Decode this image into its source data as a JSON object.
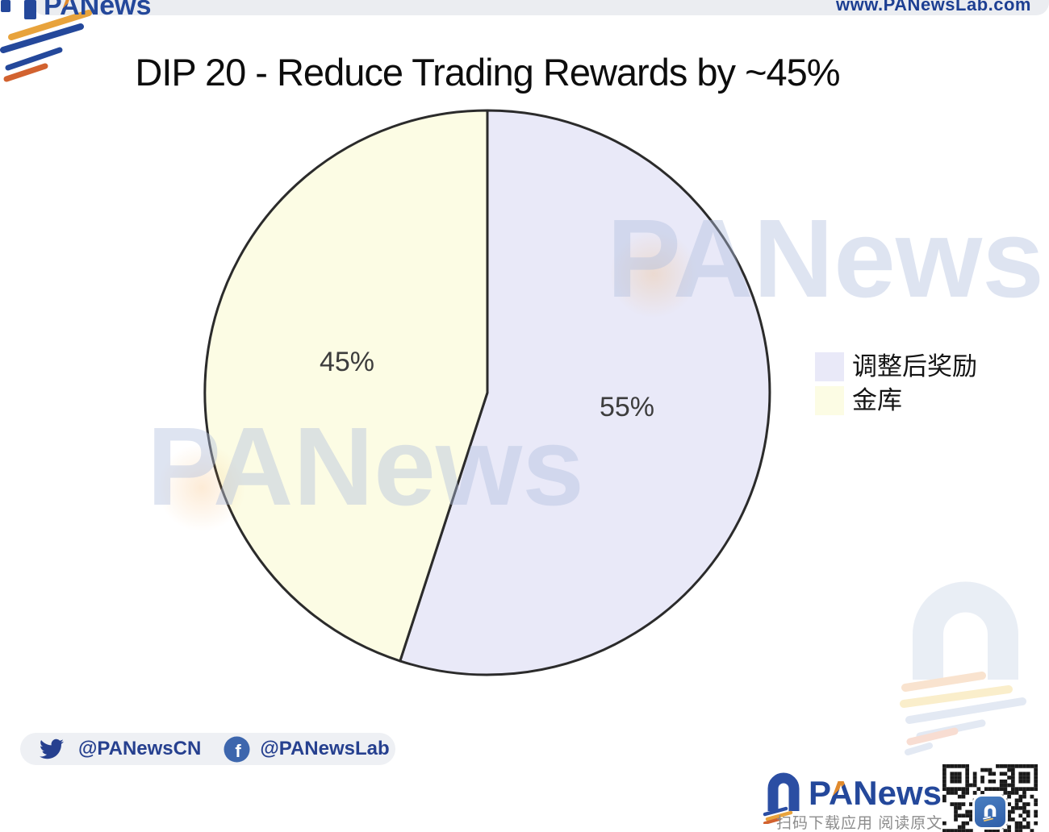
{
  "header": {
    "brand": {
      "p": "P",
      "a": "A",
      "rest": "News"
    },
    "url": "www.PANewsLab.com"
  },
  "chart_data": {
    "type": "pie",
    "title": "DIP 20 - Reduce Trading Rewards by ~45%",
    "slices": [
      {
        "label": "调整后奖励",
        "value": 55,
        "display": "55%",
        "color": "#e9e9f8"
      },
      {
        "label": "金库",
        "value": 45,
        "display": "45%",
        "color": "#fcfce4"
      }
    ],
    "start_angle_deg": 0,
    "direction": "clockwise",
    "legend_position": "right",
    "outline_color": "#2b2b2b",
    "label_color": "#3d3d3d"
  },
  "watermark": {
    "text": "PANews"
  },
  "social": {
    "twitter": "@PANewsCN",
    "facebook": "@PANewsLab"
  },
  "app_footer": {
    "brand": {
      "p": "P",
      "a": "A",
      "rest": "News"
    },
    "caption": "扫码下载应用 阅读原文"
  }
}
